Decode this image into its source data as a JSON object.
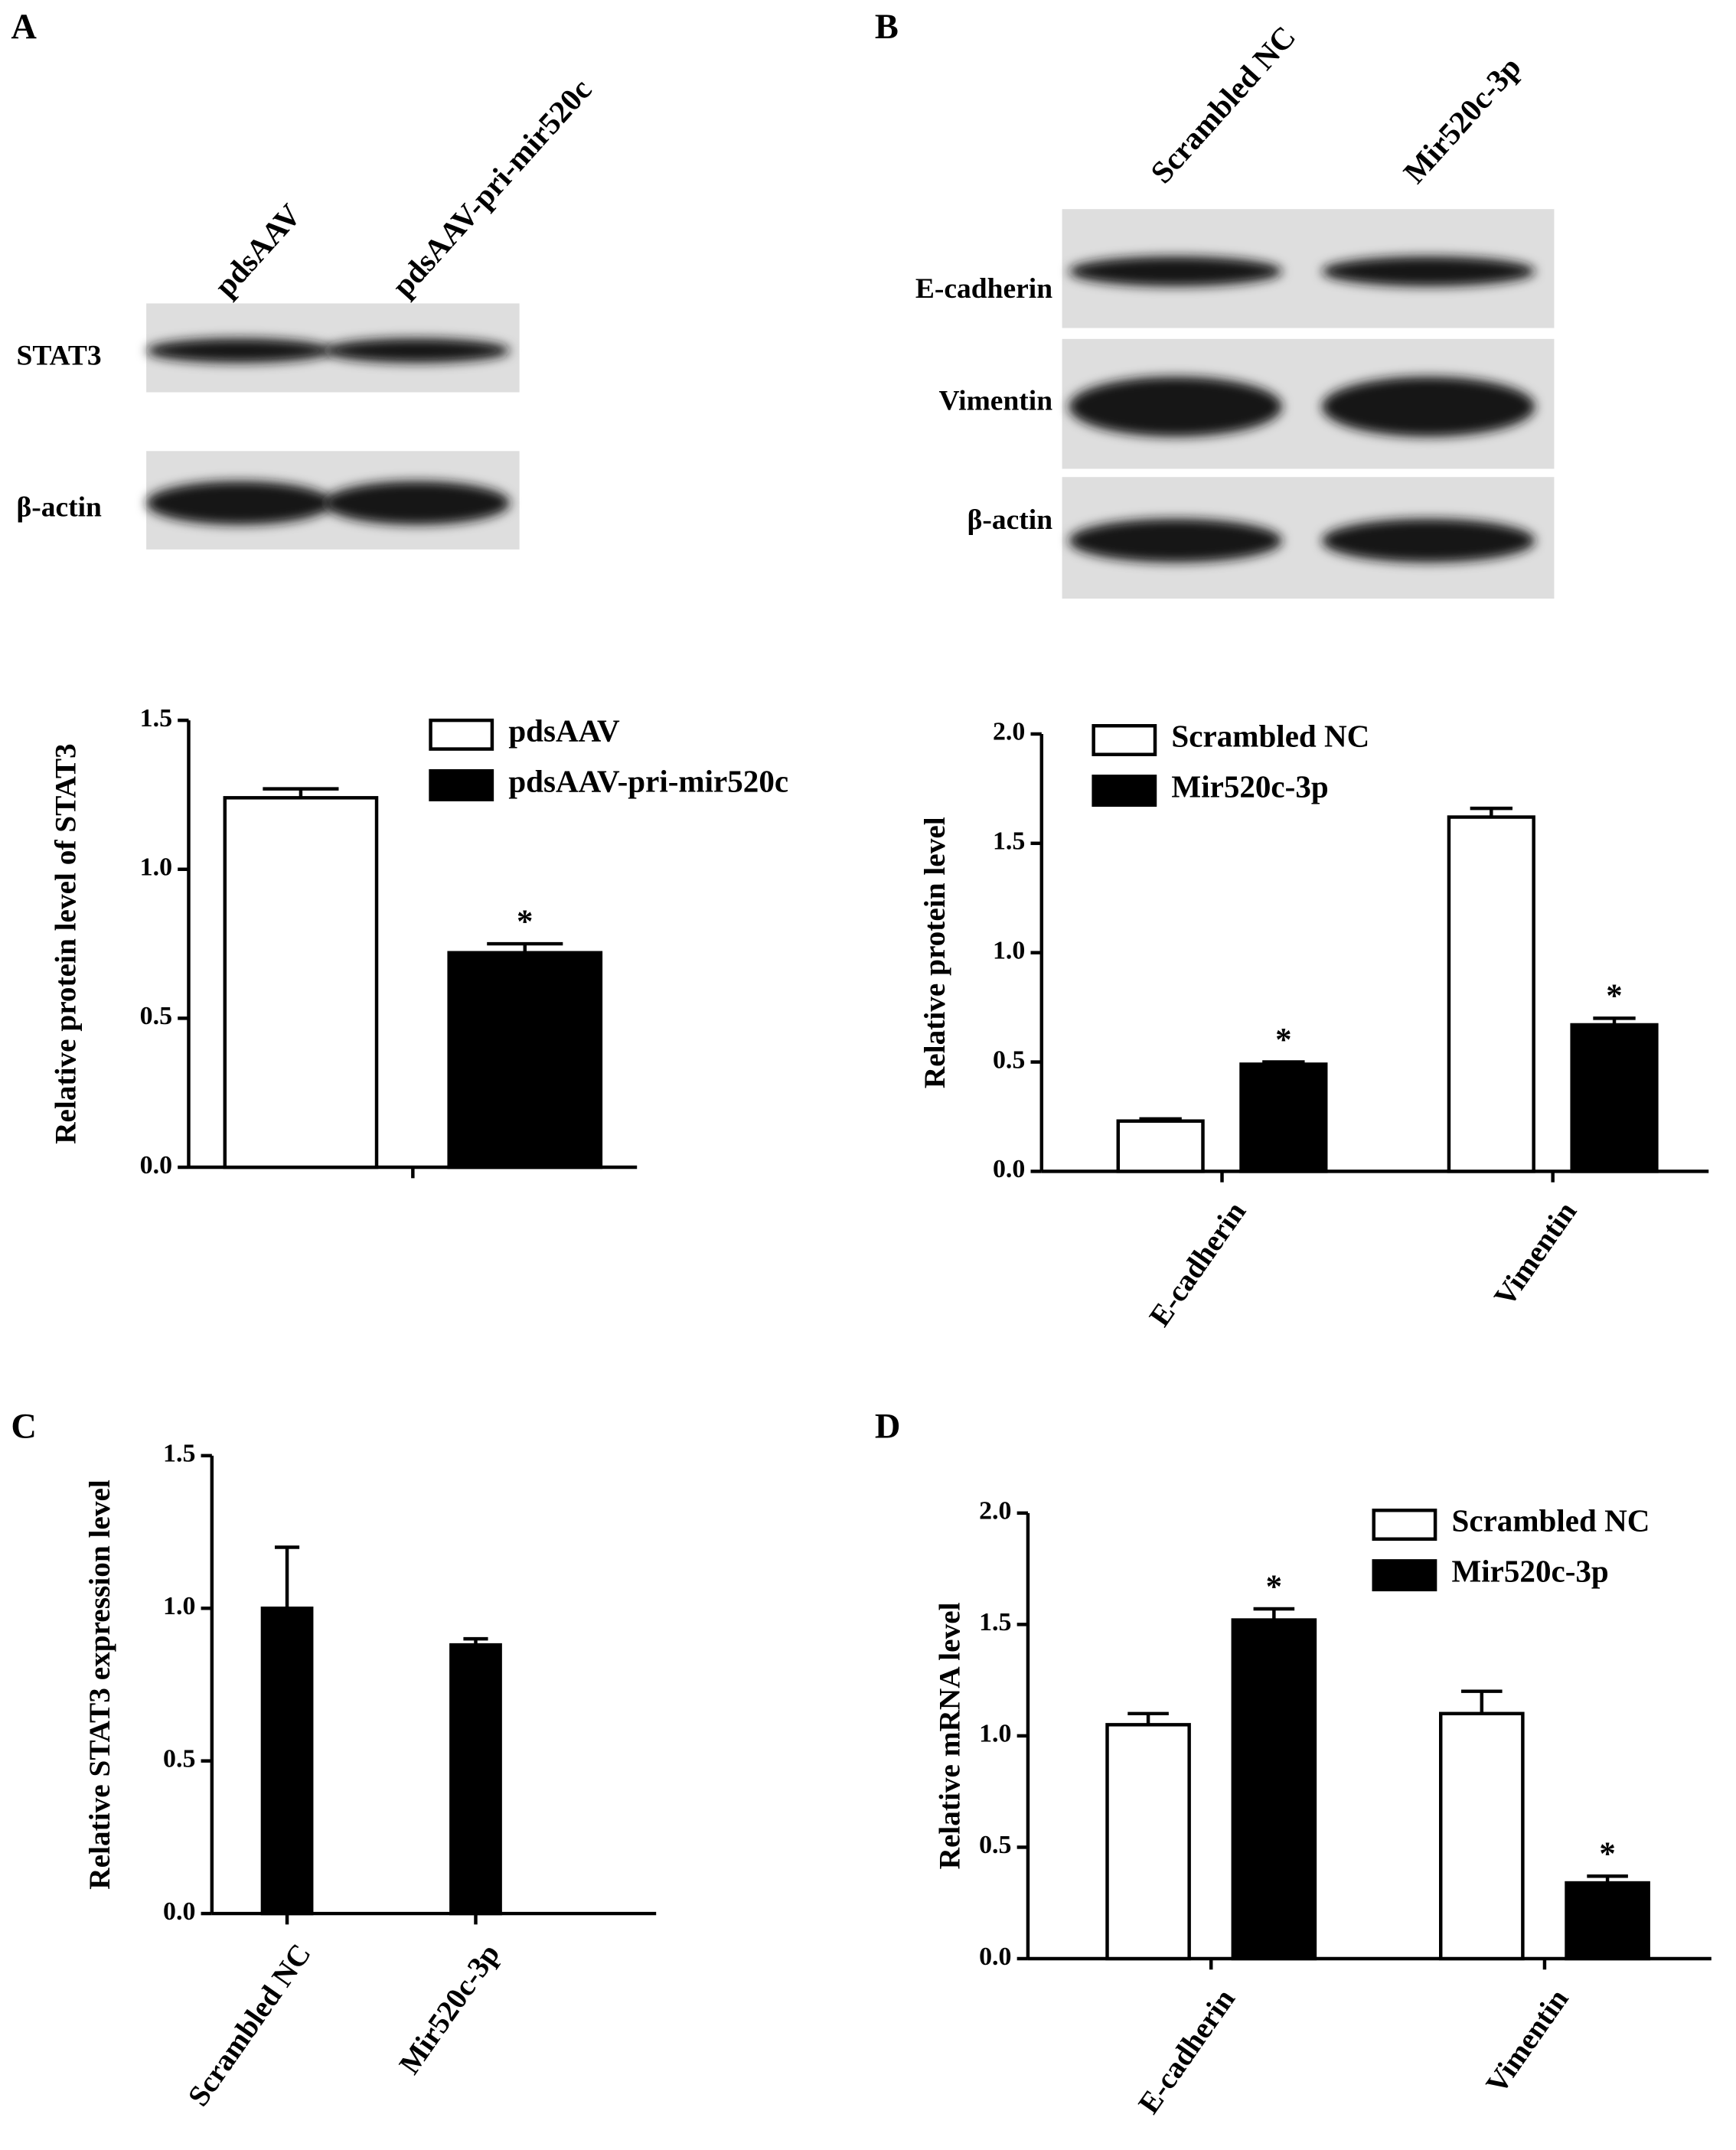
{
  "panels": [
    "A",
    "B",
    "C",
    "D"
  ],
  "blots": [
    {
      "lanes": [
        "pdsAAV",
        "pdsAAV-pri-mir520c"
      ],
      "rows": [
        "STAT3",
        "β-actin"
      ]
    },
    {
      "lanes": [
        "Scrambled NC",
        "Mir520c-3p"
      ],
      "rows": [
        "E-cadherin",
        "Vimentin",
        "β-actin"
      ]
    }
  ],
  "chart_data": [
    {
      "type": "bar",
      "y_label": "Relative protein level of STAT3",
      "categories": [
        null
      ],
      "series": [
        {
          "name": "pdsAAV",
          "color": "#ffffff",
          "values": [
            1.24
          ],
          "errors": [
            0.03
          ]
        },
        {
          "name": "pdsAAV-pri-mir520c",
          "color": "#000000",
          "values": [
            0.72
          ],
          "errors": [
            0.03
          ],
          "labels": [
            "*"
          ]
        }
      ],
      "ylim": [
        0,
        1.5
      ],
      "yticks": [
        {
          "value": 0,
          "label": "0.0"
        },
        {
          "value": 0.5,
          "label": "0.5"
        },
        {
          "value": 1,
          "label": "1.0"
        },
        {
          "value": 1.5,
          "label": "1.5"
        }
      ]
    },
    {
      "type": "bar",
      "y_label": "Relative protein level",
      "categories": [
        "E-cadherin",
        "Vimentin"
      ],
      "series": [
        {
          "name": "Scrambled NC",
          "color": "#ffffff",
          "values": [
            0.23,
            1.62
          ],
          "errors": [
            0.01,
            0.04
          ]
        },
        {
          "name": "Mir520c-3p",
          "color": "#000000",
          "values": [
            0.49,
            0.67
          ],
          "errors": [
            0.01,
            0.03
          ],
          "labels": [
            "*",
            "*"
          ]
        }
      ],
      "ylim": [
        0,
        2
      ],
      "yticks": [
        {
          "value": 0,
          "label": "0.0"
        },
        {
          "value": 0.5,
          "label": "0.5"
        },
        {
          "value": 1,
          "label": "1.0"
        },
        {
          "value": 1.5,
          "label": "1.5"
        },
        {
          "value": 2,
          "label": "2.0"
        }
      ]
    },
    {
      "type": "bar",
      "y_label": "Relative STAT3 expression level",
      "categories": [
        "Scrambled NC",
        "Mir520c-3p"
      ],
      "series": [
        {
          "color": "#000000",
          "values": [
            1.0,
            0.88
          ],
          "errors": [
            0.2,
            0.02
          ]
        }
      ],
      "ylim": [
        0,
        1.5
      ],
      "yticks": [
        {
          "value": 0,
          "label": "0.0"
        },
        {
          "value": 0.5,
          "label": "0.5"
        },
        {
          "value": 1,
          "label": "1.0"
        },
        {
          "value": 1.5,
          "label": "1.5"
        }
      ]
    },
    {
      "type": "bar",
      "y_label": "Relative mRNA level",
      "categories": [
        "E-cadherin",
        "Vimentin"
      ],
      "series": [
        {
          "name": "Scrambled NC",
          "color": "#ffffff",
          "values": [
            1.05,
            1.1
          ],
          "errors": [
            0.05,
            0.1
          ]
        },
        {
          "name": "Mir520c-3p",
          "color": "#000000",
          "values": [
            1.52,
            0.34
          ],
          "errors": [
            0.05,
            0.03
          ],
          "labels": [
            "*",
            "*"
          ]
        }
      ],
      "ylim": [
        0,
        2
      ],
      "yticks": [
        {
          "value": 0,
          "label": "0.0"
        },
        {
          "value": 0.5,
          "label": "0.5"
        },
        {
          "value": 1,
          "label": "1.0"
        },
        {
          "value": 1.5,
          "label": "1.5"
        },
        {
          "value": 2,
          "label": "2.0"
        }
      ]
    }
  ]
}
